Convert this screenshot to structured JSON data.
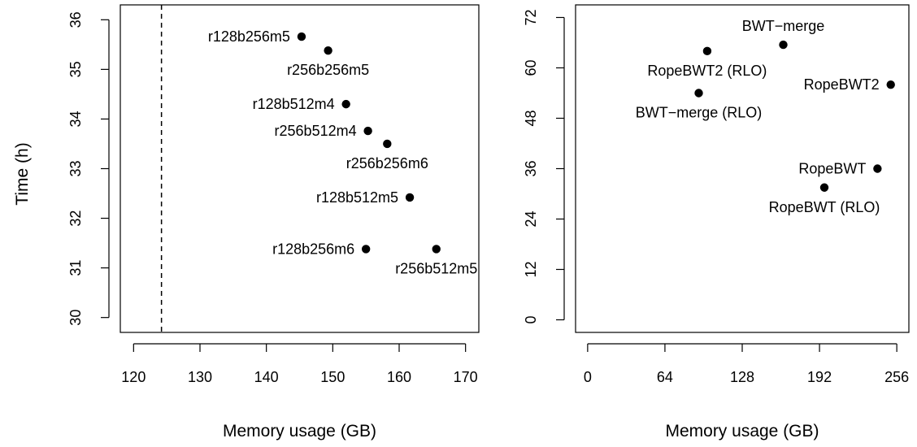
{
  "figure": {
    "ylabel": "Time (h)"
  },
  "chart_data": [
    {
      "type": "scatter",
      "title": "",
      "xlabel": "Memory usage (GB)",
      "ylabel": "Time (h)",
      "xlim": [
        118,
        172
      ],
      "ylim": [
        29.7,
        36.3
      ],
      "xticks": [
        120,
        130,
        140,
        150,
        160,
        170
      ],
      "yticks": [
        30,
        31,
        32,
        33,
        34,
        35,
        36
      ],
      "grid": false,
      "reference_line": {
        "axis": "x",
        "value": 124.2,
        "style": "dashed"
      },
      "points": [
        {
          "label": "r128b256m5",
          "x": 145.3,
          "y": 35.66,
          "label_pos": "left"
        },
        {
          "label": "r256b256m5",
          "x": 149.3,
          "y": 35.38,
          "label_pos": "below"
        },
        {
          "label": "r128b512m4",
          "x": 152.0,
          "y": 34.3,
          "label_pos": "left"
        },
        {
          "label": "r256b512m4",
          "x": 155.3,
          "y": 33.76,
          "label_pos": "left"
        },
        {
          "label": "r256b256m6",
          "x": 158.2,
          "y": 33.5,
          "label_pos": "below"
        },
        {
          "label": "r128b512m5",
          "x": 161.6,
          "y": 32.42,
          "label_pos": "left"
        },
        {
          "label": "r128b256m6",
          "x": 155.0,
          "y": 31.38,
          "label_pos": "left"
        },
        {
          "label": "r256b512m5",
          "x": 165.6,
          "y": 31.38,
          "label_pos": "below"
        }
      ]
    },
    {
      "type": "scatter",
      "title": "",
      "xlabel": "Memory usage (GB)",
      "ylabel": "",
      "xlim": [
        -10,
        266
      ],
      "ylim": [
        -3,
        75
      ],
      "xticks": [
        0,
        64,
        128,
        192,
        256
      ],
      "yticks": [
        0,
        12,
        24,
        36,
        48,
        60,
        72
      ],
      "grid": false,
      "points": [
        {
          "label": "BWT−merge",
          "x": 162,
          "y": 65.5,
          "label_pos": "above"
        },
        {
          "label": "RopeBWT2 (RLO)",
          "x": 99,
          "y": 64.0,
          "label_pos": "below"
        },
        {
          "label": "RopeBWT2",
          "x": 251,
          "y": 56.0,
          "label_pos": "left"
        },
        {
          "label": "BWT−merge (RLO)",
          "x": 92,
          "y": 54.0,
          "label_pos": "below"
        },
        {
          "label": "RopeBWT",
          "x": 240,
          "y": 36.0,
          "label_pos": "left"
        },
        {
          "label": "RopeBWT (RLO)",
          "x": 196,
          "y": 31.5,
          "label_pos": "below"
        }
      ]
    }
  ]
}
